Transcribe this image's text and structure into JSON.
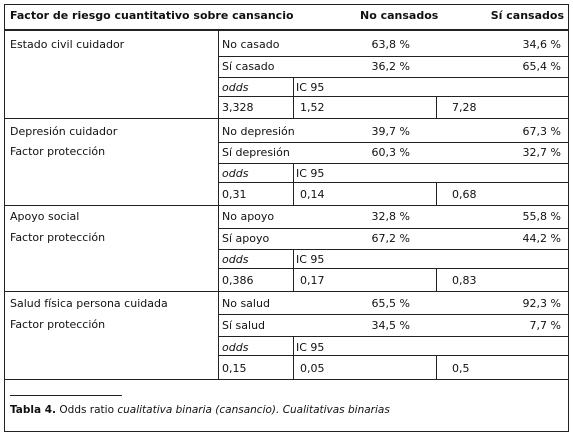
{
  "header": {
    "factor": "Factor de riesgo cuantitativo sobre cansancio",
    "no_cansados": "No cansados",
    "si_cansados": "Sí cansados"
  },
  "groups": [
    {
      "label1": "Estado civil cuidador",
      "label2": "",
      "rows": [
        {
          "cat": "No casado",
          "no": "63,8 %",
          "si": "34,6 %"
        },
        {
          "cat": "Sí casado",
          "no": "36,2 %",
          "si": "65,4 %"
        }
      ],
      "odds_label": "odds",
      "ic_label": "IC 95",
      "odds": "3,328",
      "ic_low": "1,52",
      "ic_high": "7,28"
    },
    {
      "label1": "Depresión cuidador",
      "label2": "Factor protección",
      "rows": [
        {
          "cat": "No depresión",
          "no": "39,7 %",
          "si": "67,3 %"
        },
        {
          "cat": "Sí depresión",
          "no": "60,3 %",
          "si": "32,7 %"
        }
      ],
      "odds_label": "odds",
      "ic_label": "IC 95",
      "odds": "0,31",
      "ic_low": "0,14",
      "ic_high": "0,68"
    },
    {
      "label1": "Apoyo social",
      "label2": "Factor protección",
      "rows": [
        {
          "cat": "No apoyo",
          "no": "32,8 %",
          "si": "55,8 %"
        },
        {
          "cat": "Sí apoyo",
          "no": "67,2 %",
          "si": "44,2 %"
        }
      ],
      "odds_label": "odds",
      "ic_label": "IC 95",
      "odds": "0,386",
      "ic_low": "0,17",
      "ic_high": "0,83"
    },
    {
      "label1": "Salud física persona cuidada",
      "label2": "Factor protección",
      "rows": [
        {
          "cat": "No salud",
          "no": "65,5 %",
          "si": "92,3 %"
        },
        {
          "cat": "Sí salud",
          "no": "34,5 %",
          "si": "7,7 %"
        }
      ],
      "odds_label": "odds",
      "ic_label": "IC 95",
      "odds": "0,15",
      "ic_low": "0,05",
      "ic_high": "0,5"
    }
  ],
  "caption": {
    "label": "Tabla 4.",
    "text_plain": " Odds ratio ",
    "text_italic": "cualitativa binaria (cansancio). Cualitativas binarias"
  }
}
